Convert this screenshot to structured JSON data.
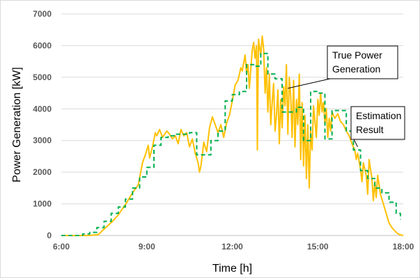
{
  "chart_data": {
    "type": "line",
    "title": "",
    "xlabel": "Time [h]",
    "ylabel": "Power Generation [kW]",
    "xlim": [
      6,
      18
    ],
    "ylim": [
      0,
      7000
    ],
    "x_tick_values": [
      6,
      9,
      12,
      15,
      18
    ],
    "x_tick_labels": [
      "6:00",
      "9:00",
      "12:00",
      "15:00",
      "18:00"
    ],
    "y_ticks": [
      0,
      1000,
      2000,
      3000,
      4000,
      5000,
      6000,
      7000
    ],
    "grid": "horizontal",
    "legend": "none (callout annotations)",
    "series": [
      {
        "style": "solid",
        "color": "#ffc000",
        "points": [
          [
            6.0,
            0
          ],
          [
            6.5,
            0
          ],
          [
            7.0,
            0
          ],
          [
            7.3,
            30
          ],
          [
            7.5,
            200
          ],
          [
            7.8,
            450
          ],
          [
            8.0,
            650
          ],
          [
            8.3,
            1050
          ],
          [
            8.5,
            1350
          ],
          [
            8.7,
            1600
          ],
          [
            8.85,
            2300
          ],
          [
            8.95,
            2550
          ],
          [
            9.05,
            2850
          ],
          [
            9.1,
            2450
          ],
          [
            9.2,
            2800
          ],
          [
            9.3,
            3250
          ],
          [
            9.35,
            3150
          ],
          [
            9.45,
            3350
          ],
          [
            9.55,
            3100
          ],
          [
            9.7,
            3300
          ],
          [
            9.8,
            3200
          ],
          [
            9.9,
            3050
          ],
          [
            10.0,
            3150
          ],
          [
            10.1,
            2900
          ],
          [
            10.2,
            3350
          ],
          [
            10.3,
            3150
          ],
          [
            10.4,
            3250
          ],
          [
            10.5,
            2800
          ],
          [
            10.6,
            3050
          ],
          [
            10.7,
            2600
          ],
          [
            10.8,
            2300
          ],
          [
            10.85,
            2000
          ],
          [
            10.9,
            2200
          ],
          [
            11.0,
            2950
          ],
          [
            11.1,
            2650
          ],
          [
            11.2,
            3400
          ],
          [
            11.3,
            3750
          ],
          [
            11.4,
            3500
          ],
          [
            11.5,
            3250
          ],
          [
            11.6,
            3500
          ],
          [
            11.7,
            3100
          ],
          [
            11.8,
            3550
          ],
          [
            11.9,
            3800
          ],
          [
            12.0,
            4250
          ],
          [
            12.1,
            4750
          ],
          [
            12.2,
            4900
          ],
          [
            12.3,
            5300
          ],
          [
            12.35,
            5200
          ],
          [
            12.45,
            5700
          ],
          [
            12.5,
            5100
          ],
          [
            12.55,
            5400
          ],
          [
            12.6,
            4650
          ],
          [
            12.7,
            5850
          ],
          [
            12.75,
            6100
          ],
          [
            12.8,
            5600
          ],
          [
            12.85,
            6000
          ],
          [
            12.88,
            2700
          ],
          [
            12.92,
            6200
          ],
          [
            13.0,
            5700
          ],
          [
            13.05,
            6300
          ],
          [
            13.1,
            5900
          ],
          [
            13.15,
            4500
          ],
          [
            13.2,
            5300
          ],
          [
            13.25,
            3900
          ],
          [
            13.3,
            5100
          ],
          [
            13.35,
            3500
          ],
          [
            13.4,
            4200
          ],
          [
            13.45,
            4800
          ],
          [
            13.5,
            3300
          ],
          [
            13.55,
            3800
          ],
          [
            13.6,
            4600
          ],
          [
            13.65,
            2900
          ],
          [
            13.7,
            4300
          ],
          [
            13.75,
            3400
          ],
          [
            13.8,
            4700
          ],
          [
            13.85,
            4100
          ],
          [
            13.9,
            5400
          ],
          [
            13.95,
            3200
          ],
          [
            14.0,
            5000
          ],
          [
            14.05,
            4400
          ],
          [
            14.1,
            3100
          ],
          [
            14.15,
            4900
          ],
          [
            14.2,
            2800
          ],
          [
            14.25,
            4300
          ],
          [
            14.3,
            3500
          ],
          [
            14.35,
            5100
          ],
          [
            14.4,
            2400
          ],
          [
            14.45,
            4200
          ],
          [
            14.5,
            2200
          ],
          [
            14.55,
            3800
          ],
          [
            14.6,
            1800
          ],
          [
            14.65,
            3500
          ],
          [
            14.7,
            1500
          ],
          [
            14.75,
            3300
          ],
          [
            14.8,
            2700
          ],
          [
            14.85,
            4100
          ],
          [
            14.9,
            3600
          ],
          [
            14.95,
            3100
          ],
          [
            15.0,
            4300
          ],
          [
            15.05,
            3800
          ],
          [
            15.1,
            4500
          ],
          [
            15.15,
            3900
          ],
          [
            15.2,
            4200
          ],
          [
            15.25,
            3500
          ],
          [
            15.3,
            4000
          ],
          [
            15.35,
            3100
          ],
          [
            15.4,
            3700
          ],
          [
            15.45,
            3300
          ],
          [
            15.5,
            3900
          ],
          [
            15.6,
            3700
          ],
          [
            15.7,
            3850
          ],
          [
            15.8,
            3600
          ],
          [
            15.9,
            3500
          ],
          [
            16.0,
            3300
          ],
          [
            16.1,
            3150
          ],
          [
            16.2,
            2900
          ],
          [
            16.3,
            2700
          ],
          [
            16.35,
            2400
          ],
          [
            16.4,
            2600
          ],
          [
            16.5,
            2100
          ],
          [
            16.55,
            1700
          ],
          [
            16.6,
            2300
          ],
          [
            16.7,
            1900
          ],
          [
            16.75,
            1300
          ],
          [
            16.8,
            2400
          ],
          [
            16.9,
            1800
          ],
          [
            16.95,
            1100
          ],
          [
            17.0,
            1700
          ],
          [
            17.05,
            1200
          ],
          [
            17.1,
            1900
          ],
          [
            17.2,
            1300
          ],
          [
            17.3,
            1000
          ],
          [
            17.4,
            700
          ],
          [
            17.5,
            400
          ],
          [
            17.6,
            250
          ],
          [
            17.7,
            150
          ],
          [
            17.8,
            60
          ],
          [
            17.9,
            20
          ],
          [
            18.0,
            0
          ]
        ]
      },
      {
        "style": "dashed",
        "color": "#00b050",
        "points": [
          [
            6.0,
            0
          ],
          [
            6.75,
            0
          ],
          [
            6.75,
            50
          ],
          [
            7.0,
            50
          ],
          [
            7.0,
            100
          ],
          [
            7.25,
            100
          ],
          [
            7.25,
            250
          ],
          [
            7.5,
            250
          ],
          [
            7.5,
            450
          ],
          [
            7.75,
            450
          ],
          [
            7.75,
            700
          ],
          [
            8.0,
            700
          ],
          [
            8.0,
            900
          ],
          [
            8.25,
            900
          ],
          [
            8.25,
            1150
          ],
          [
            8.5,
            1150
          ],
          [
            8.5,
            1500
          ],
          [
            8.75,
            1500
          ],
          [
            8.75,
            1850
          ],
          [
            9.0,
            1850
          ],
          [
            9.0,
            2150
          ],
          [
            9.25,
            2150
          ],
          [
            9.25,
            2850
          ],
          [
            9.5,
            2850
          ],
          [
            9.5,
            3100
          ],
          [
            9.75,
            3100
          ],
          [
            9.75,
            3150
          ],
          [
            10.0,
            3150
          ],
          [
            10.0,
            3200
          ],
          [
            10.5,
            3200
          ],
          [
            10.5,
            3250
          ],
          [
            10.75,
            3250
          ],
          [
            10.75,
            2550
          ],
          [
            11.25,
            2550
          ],
          [
            11.25,
            3000
          ],
          [
            11.5,
            3000
          ],
          [
            11.5,
            3300
          ],
          [
            11.75,
            3300
          ],
          [
            11.75,
            4250
          ],
          [
            12.0,
            4250
          ],
          [
            12.0,
            4450
          ],
          [
            12.25,
            4450
          ],
          [
            12.25,
            4550
          ],
          [
            12.5,
            4550
          ],
          [
            12.5,
            5400
          ],
          [
            12.75,
            5400
          ],
          [
            12.75,
            5350
          ],
          [
            13.0,
            5350
          ],
          [
            13.0,
            5750
          ],
          [
            13.25,
            5750
          ],
          [
            13.25,
            5100
          ],
          [
            13.5,
            5100
          ],
          [
            13.5,
            4950
          ],
          [
            13.75,
            4950
          ],
          [
            13.75,
            3900
          ],
          [
            14.25,
            3900
          ],
          [
            14.25,
            4050
          ],
          [
            14.5,
            4050
          ],
          [
            14.5,
            3000
          ],
          [
            14.75,
            3000
          ],
          [
            14.75,
            4550
          ],
          [
            15.0,
            4550
          ],
          [
            15.0,
            4500
          ],
          [
            15.25,
            4500
          ],
          [
            15.25,
            3050
          ],
          [
            15.5,
            3050
          ],
          [
            15.5,
            3950
          ],
          [
            16.0,
            3950
          ],
          [
            16.0,
            3300
          ],
          [
            16.25,
            3300
          ],
          [
            16.25,
            2700
          ],
          [
            16.5,
            2700
          ],
          [
            16.5,
            2050
          ],
          [
            16.75,
            2050
          ],
          [
            16.75,
            1800
          ],
          [
            17.0,
            1800
          ],
          [
            17.0,
            1500
          ],
          [
            17.25,
            1500
          ],
          [
            17.25,
            1350
          ],
          [
            17.5,
            1350
          ],
          [
            17.5,
            1050
          ],
          [
            17.75,
            1050
          ],
          [
            17.75,
            700
          ],
          [
            17.9,
            700
          ],
          [
            17.9,
            500
          ]
        ]
      }
    ],
    "annotations": [
      {
        "lines": [
          "True Power",
          "Generation"
        ],
        "target": [
          13.95,
          4650
        ]
      },
      {
        "lines": [
          "Estimation",
          "Result"
        ],
        "target": [
          16.4,
          2800
        ]
      }
    ]
  }
}
